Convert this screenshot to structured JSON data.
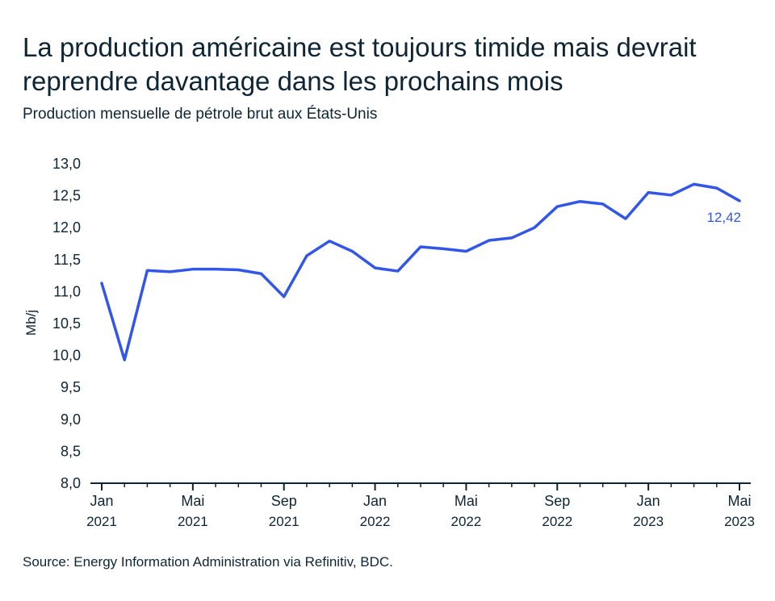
{
  "header": {
    "title": "La production américaine est toujours timide mais devrait reprendre davantage dans les prochains mois",
    "subtitle": "Production mensuelle de pétrole brut aux États-Unis"
  },
  "footer": {
    "source": "Source: Energy Information Administration via Refinitiv, BDC."
  },
  "colors": {
    "line": "#3156e8",
    "axis": "#0d2535",
    "text": "#0d2535"
  },
  "chart_data": {
    "type": "line",
    "title": "La production américaine est toujours timide mais devrait reprendre davantage dans les prochains mois",
    "subtitle": "Production mensuelle de pétrole brut aux États-Unis",
    "xlabel": "",
    "ylabel": "Mb/j",
    "ylim": [
      8.0,
      13.0
    ],
    "yticks": [
      8.0,
      8.5,
      9.0,
      9.5,
      10.0,
      10.5,
      11.0,
      11.5,
      12.0,
      12.5,
      13.0
    ],
    "ytick_labels": [
      "8,0",
      "8,5",
      "9,0",
      "9,5",
      "10,0",
      "10,5",
      "11,0",
      "11,5",
      "12,0",
      "12,5",
      "13,0"
    ],
    "xticks": [
      {
        "month": "2021-01",
        "label": "Jan",
        "year": "2021"
      },
      {
        "month": "2021-05",
        "label": "Mai",
        "year": "2021"
      },
      {
        "month": "2021-09",
        "label": "Sep",
        "year": "2021"
      },
      {
        "month": "2022-01",
        "label": "Jan",
        "year": "2022"
      },
      {
        "month": "2022-05",
        "label": "Mai",
        "year": "2022"
      },
      {
        "month": "2022-09",
        "label": "Sep",
        "year": "2022"
      },
      {
        "month": "2023-01",
        "label": "Jan",
        "year": "2023"
      },
      {
        "month": "2023-05",
        "label": "Mai",
        "year": "2023"
      }
    ],
    "grid": false,
    "series": [
      {
        "x": [
          "2021-01",
          "2021-02",
          "2021-03",
          "2021-04",
          "2021-05",
          "2021-06",
          "2021-07",
          "2021-08",
          "2021-09",
          "2021-10",
          "2021-11",
          "2021-12",
          "2022-01",
          "2022-02",
          "2022-03",
          "2022-04",
          "2022-05",
          "2022-06",
          "2022-07",
          "2022-08",
          "2022-09",
          "2022-10",
          "2022-11",
          "2022-12",
          "2023-01",
          "2023-02",
          "2023-03",
          "2023-04",
          "2023-05"
        ],
        "values": [
          11.13,
          9.93,
          11.33,
          11.31,
          11.35,
          11.35,
          11.34,
          11.28,
          10.92,
          11.56,
          11.79,
          11.63,
          11.37,
          11.32,
          11.7,
          11.67,
          11.63,
          11.8,
          11.84,
          12.0,
          12.33,
          12.41,
          12.37,
          12.14,
          12.55,
          12.51,
          12.68,
          12.62,
          12.42
        ]
      }
    ],
    "annotations": [
      {
        "text": "12,42",
        "month": "2023-05",
        "value": 12.42
      }
    ]
  }
}
